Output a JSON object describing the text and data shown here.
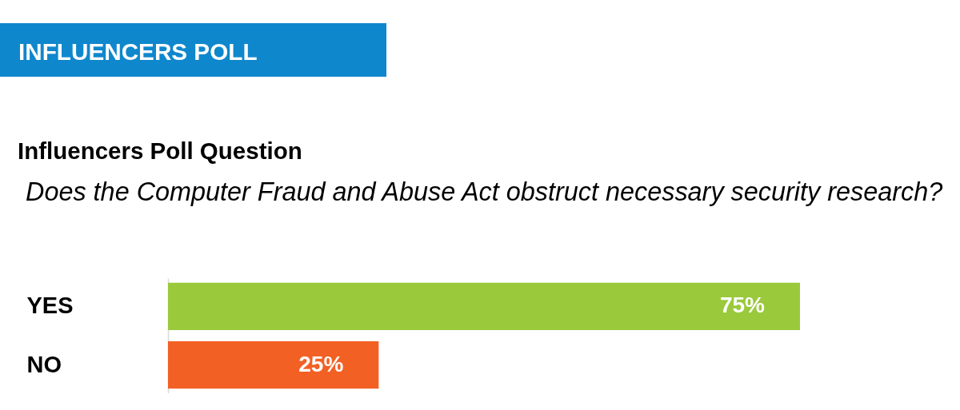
{
  "chart_data": {
    "type": "bar",
    "orientation": "horizontal",
    "title": "INFLUENCERS POLL",
    "subtitle": "Influencers Poll Question",
    "annotations": [
      "Does the Computer Fraud and Abuse Act obstruct necessary security research?"
    ],
    "categories": [
      "YES",
      "NO"
    ],
    "values": [
      75,
      25
    ],
    "colors": [
      "#9ac93c",
      "#f26024"
    ],
    "value_labels": [
      "75%",
      "25%"
    ],
    "xlim": [
      0,
      75
    ],
    "tick_labels": "y"
  }
}
